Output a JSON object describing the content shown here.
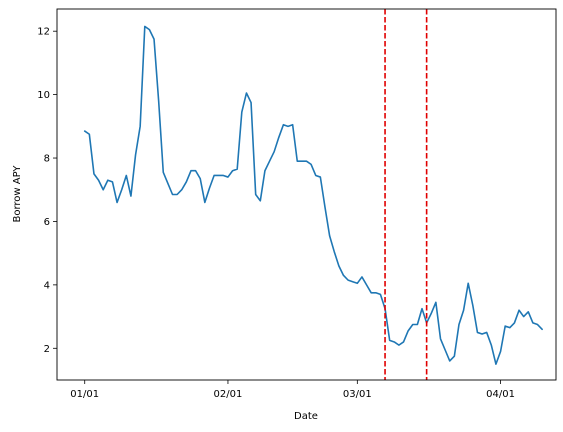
{
  "chart_data": {
    "type": "line",
    "title": "",
    "xlabel": "Date",
    "ylabel": "Borrow APY",
    "xlim": [
      "2022-12-26",
      "2023-04-13"
    ],
    "ylim": [
      1.0,
      12.7
    ],
    "x_ticks": [
      {
        "date": "2023-01-01",
        "label": "01/01"
      },
      {
        "date": "2023-02-01",
        "label": "02/01"
      },
      {
        "date": "2023-03-01",
        "label": "03/01"
      },
      {
        "date": "2023-04-01",
        "label": "04/01"
      }
    ],
    "y_ticks": [
      2,
      4,
      6,
      8,
      10,
      12
    ],
    "grid": false,
    "series": [
      {
        "color": "#1f77b4",
        "points": [
          [
            "2023-01-01",
            8.85
          ],
          [
            "2023-01-02",
            8.75
          ],
          [
            "2023-01-03",
            7.5
          ],
          [
            "2023-01-04",
            7.3
          ],
          [
            "2023-01-05",
            7.0
          ],
          [
            "2023-01-06",
            7.3
          ],
          [
            "2023-01-07",
            7.25
          ],
          [
            "2023-01-08",
            6.6
          ],
          [
            "2023-01-09",
            7.0
          ],
          [
            "2023-01-10",
            7.45
          ],
          [
            "2023-01-11",
            6.8
          ],
          [
            "2023-01-12",
            8.1
          ],
          [
            "2023-01-13",
            9.0
          ],
          [
            "2023-01-14",
            12.15
          ],
          [
            "2023-01-15",
            12.05
          ],
          [
            "2023-01-16",
            11.75
          ],
          [
            "2023-01-17",
            9.8
          ],
          [
            "2023-01-18",
            7.55
          ],
          [
            "2023-01-19",
            7.2
          ],
          [
            "2023-01-20",
            6.85
          ],
          [
            "2023-01-21",
            6.85
          ],
          [
            "2023-01-22",
            7.0
          ],
          [
            "2023-01-23",
            7.25
          ],
          [
            "2023-01-24",
            7.6
          ],
          [
            "2023-01-25",
            7.6
          ],
          [
            "2023-01-26",
            7.35
          ],
          [
            "2023-01-27",
            6.6
          ],
          [
            "2023-01-28",
            7.05
          ],
          [
            "2023-01-29",
            7.45
          ],
          [
            "2023-01-30",
            7.45
          ],
          [
            "2023-01-31",
            7.45
          ],
          [
            "2023-02-01",
            7.4
          ],
          [
            "2023-02-02",
            7.6
          ],
          [
            "2023-02-03",
            7.65
          ],
          [
            "2023-02-04",
            9.45
          ],
          [
            "2023-02-05",
            10.05
          ],
          [
            "2023-02-06",
            9.75
          ],
          [
            "2023-02-07",
            6.85
          ],
          [
            "2023-02-08",
            6.65
          ],
          [
            "2023-02-09",
            7.6
          ],
          [
            "2023-02-10",
            7.9
          ],
          [
            "2023-02-11",
            8.2
          ],
          [
            "2023-02-12",
            8.65
          ],
          [
            "2023-02-13",
            9.05
          ],
          [
            "2023-02-14",
            9.0
          ],
          [
            "2023-02-15",
            9.05
          ],
          [
            "2023-02-16",
            7.9
          ],
          [
            "2023-02-17",
            7.9
          ],
          [
            "2023-02-18",
            7.9
          ],
          [
            "2023-02-19",
            7.8
          ],
          [
            "2023-02-20",
            7.45
          ],
          [
            "2023-02-21",
            7.4
          ],
          [
            "2023-02-22",
            6.45
          ],
          [
            "2023-02-23",
            5.55
          ],
          [
            "2023-02-24",
            5.05
          ],
          [
            "2023-02-25",
            4.6
          ],
          [
            "2023-02-26",
            4.3
          ],
          [
            "2023-02-27",
            4.15
          ],
          [
            "2023-02-28",
            4.1
          ],
          [
            "2023-03-01",
            4.05
          ],
          [
            "2023-03-02",
            4.25
          ],
          [
            "2023-03-03",
            4.0
          ],
          [
            "2023-03-04",
            3.75
          ],
          [
            "2023-03-05",
            3.75
          ],
          [
            "2023-03-06",
            3.7
          ],
          [
            "2023-03-07",
            3.25
          ],
          [
            "2023-03-08",
            2.25
          ],
          [
            "2023-03-09",
            2.2
          ],
          [
            "2023-03-10",
            2.1
          ],
          [
            "2023-03-11",
            2.2
          ],
          [
            "2023-03-12",
            2.55
          ],
          [
            "2023-03-13",
            2.75
          ],
          [
            "2023-03-14",
            2.75
          ],
          [
            "2023-03-15",
            3.25
          ],
          [
            "2023-03-16",
            2.8
          ],
          [
            "2023-03-17",
            3.1
          ],
          [
            "2023-03-18",
            3.45
          ],
          [
            "2023-03-19",
            2.3
          ],
          [
            "2023-03-20",
            1.95
          ],
          [
            "2023-03-21",
            1.6
          ],
          [
            "2023-03-22",
            1.75
          ],
          [
            "2023-03-23",
            2.75
          ],
          [
            "2023-03-24",
            3.2
          ],
          [
            "2023-03-25",
            4.05
          ],
          [
            "2023-03-26",
            3.35
          ],
          [
            "2023-03-27",
            2.5
          ],
          [
            "2023-03-28",
            2.45
          ],
          [
            "2023-03-29",
            2.5
          ],
          [
            "2023-03-30",
            2.1
          ],
          [
            "2023-03-31",
            1.5
          ],
          [
            "2023-04-01",
            1.9
          ],
          [
            "2023-04-02",
            2.7
          ],
          [
            "2023-04-03",
            2.65
          ],
          [
            "2023-04-04",
            2.8
          ],
          [
            "2023-04-05",
            3.2
          ],
          [
            "2023-04-06",
            3.0
          ],
          [
            "2023-04-07",
            3.15
          ],
          [
            "2023-04-08",
            2.8
          ],
          [
            "2023-04-09",
            2.75
          ],
          [
            "2023-04-10",
            2.6
          ]
        ]
      }
    ],
    "vlines": [
      {
        "date": "2023-03-07",
        "color": "#e00000",
        "style": "dashed"
      },
      {
        "date": "2023-03-16",
        "color": "#e00000",
        "style": "dashed"
      }
    ]
  }
}
